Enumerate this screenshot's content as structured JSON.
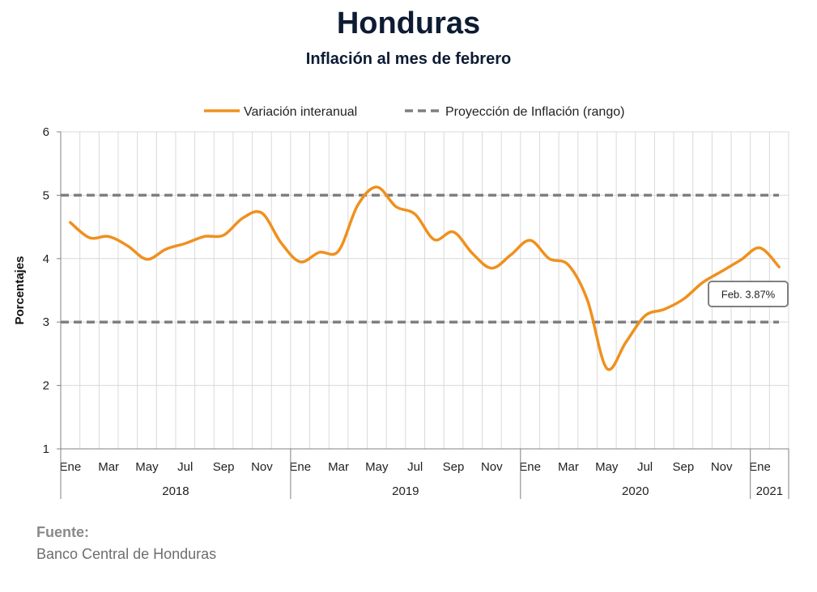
{
  "header": {
    "title": "Honduras",
    "subtitle": "Inflación al mes de febrero"
  },
  "source": {
    "label": "Fuente:",
    "text": "Banco Central de Honduras"
  },
  "chart_data": {
    "type": "line",
    "title": "Honduras",
    "subtitle": "Inflación al mes de febrero",
    "ylabel": "Porcentajes",
    "xlabel": "",
    "ylim": [
      1,
      6
    ],
    "yticks": [
      1,
      2,
      3,
      4,
      5,
      6
    ],
    "grid": true,
    "legend_position": "top",
    "x": [
      "2018-01",
      "2018-02",
      "2018-03",
      "2018-04",
      "2018-05",
      "2018-06",
      "2018-07",
      "2018-08",
      "2018-09",
      "2018-10",
      "2018-11",
      "2018-12",
      "2019-01",
      "2019-02",
      "2019-03",
      "2019-04",
      "2019-05",
      "2019-06",
      "2019-07",
      "2019-08",
      "2019-09",
      "2019-10",
      "2019-11",
      "2019-12",
      "2020-01",
      "2020-02",
      "2020-03",
      "2020-04",
      "2020-05",
      "2020-06",
      "2020-07",
      "2020-08",
      "2020-09",
      "2020-10",
      "2020-11",
      "2020-12",
      "2021-01",
      "2021-02"
    ],
    "month_labels": [
      "Ene",
      "",
      "Mar",
      "",
      "May",
      "",
      "Jul",
      "",
      "Sep",
      "",
      "Nov",
      "",
      "Ene",
      "",
      "Mar",
      "",
      "May",
      "",
      "Jul",
      "",
      "Sep",
      "",
      "Nov",
      "",
      "Ene",
      "",
      "Mar",
      "",
      "May",
      "",
      "Jul",
      "",
      "Sep",
      "",
      "Nov",
      "",
      "Ene",
      ""
    ],
    "year_groups": [
      {
        "label": "2018",
        "start": 0,
        "end": 11
      },
      {
        "label": "2019",
        "start": 12,
        "end": 23
      },
      {
        "label": "2020",
        "start": 24,
        "end": 35
      },
      {
        "label": "2021",
        "start": 36,
        "end": 37
      }
    ],
    "series": [
      {
        "name": "Variación interanual",
        "color": "#f0901e",
        "style": "solid",
        "values": [
          4.57,
          4.33,
          4.35,
          4.2,
          3.99,
          4.15,
          4.24,
          4.35,
          4.37,
          4.64,
          4.72,
          4.25,
          3.95,
          4.1,
          4.12,
          4.84,
          5.13,
          4.82,
          4.7,
          4.3,
          4.42,
          4.08,
          3.85,
          4.06,
          4.29,
          4.0,
          3.9,
          3.34,
          2.27,
          2.68,
          3.1,
          3.2,
          3.36,
          3.62,
          3.8,
          3.98,
          4.17,
          3.87
        ]
      },
      {
        "name": "Proyección de Inflación (rango)",
        "color": "#7f7f7f",
        "style": "dashed",
        "bounds": [
          3,
          5
        ]
      }
    ],
    "annotation": {
      "text": "Feb. 3.87%",
      "index": 37,
      "value": 3.87
    }
  }
}
